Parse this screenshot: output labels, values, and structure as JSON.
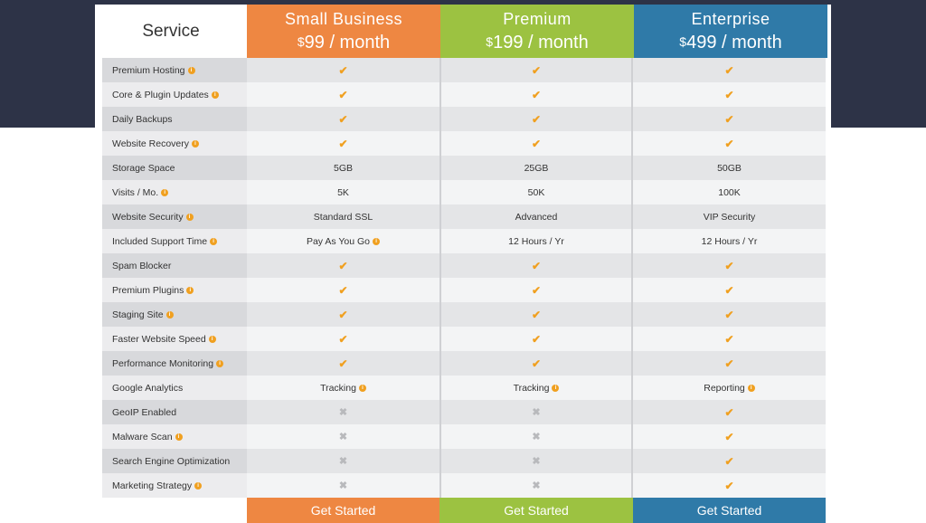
{
  "header": {
    "service_label": "Service",
    "plans": [
      {
        "name": "Small Business",
        "currency": "$",
        "price": "99 / month",
        "color": "#ee8742"
      },
      {
        "name": "Premium",
        "currency": "$",
        "price": "199 / month",
        "color": "#9cc241"
      },
      {
        "name": "Enterprise",
        "currency": "$",
        "price": "499 / month",
        "color": "#2f7aa8"
      }
    ]
  },
  "icons": {
    "check": "✔",
    "cross": "✖",
    "info": "i"
  },
  "rows": [
    {
      "label": "Premium Hosting",
      "info": true,
      "cells": [
        {
          "type": "check"
        },
        {
          "type": "check"
        },
        {
          "type": "check"
        }
      ]
    },
    {
      "label": "Core & Plugin Updates",
      "info": true,
      "cells": [
        {
          "type": "check"
        },
        {
          "type": "check"
        },
        {
          "type": "check"
        }
      ]
    },
    {
      "label": "Daily Backups",
      "info": false,
      "cells": [
        {
          "type": "check"
        },
        {
          "type": "check"
        },
        {
          "type": "check"
        }
      ]
    },
    {
      "label": "Website Recovery",
      "info": true,
      "cells": [
        {
          "type": "check"
        },
        {
          "type": "check"
        },
        {
          "type": "check"
        }
      ]
    },
    {
      "label": "Storage Space",
      "info": false,
      "cells": [
        {
          "type": "text",
          "text": "5GB"
        },
        {
          "type": "text",
          "text": "25GB"
        },
        {
          "type": "text",
          "text": "50GB"
        }
      ]
    },
    {
      "label": "Visits / Mo.",
      "info": true,
      "cells": [
        {
          "type": "text",
          "text": "5K"
        },
        {
          "type": "text",
          "text": "50K"
        },
        {
          "type": "text",
          "text": "100K"
        }
      ]
    },
    {
      "label": "Website Security",
      "info": true,
      "cells": [
        {
          "type": "text",
          "text": "Standard SSL"
        },
        {
          "type": "text",
          "text": "Advanced"
        },
        {
          "type": "text",
          "text": "VIP Security"
        }
      ]
    },
    {
      "label": "Included Support Time",
      "info": true,
      "cells": [
        {
          "type": "text",
          "text": "Pay As You Go",
          "info": true
        },
        {
          "type": "text",
          "text": "12 Hours / Yr"
        },
        {
          "type": "text",
          "text": "12 Hours / Yr"
        }
      ]
    },
    {
      "label": "Spam Blocker",
      "info": false,
      "cells": [
        {
          "type": "check"
        },
        {
          "type": "check"
        },
        {
          "type": "check"
        }
      ]
    },
    {
      "label": "Premium Plugins",
      "info": true,
      "cells": [
        {
          "type": "check"
        },
        {
          "type": "check"
        },
        {
          "type": "check"
        }
      ]
    },
    {
      "label": "Staging Site",
      "info": true,
      "cells": [
        {
          "type": "check"
        },
        {
          "type": "check"
        },
        {
          "type": "check"
        }
      ]
    },
    {
      "label": "Faster Website Speed",
      "info": true,
      "cells": [
        {
          "type": "check"
        },
        {
          "type": "check"
        },
        {
          "type": "check"
        }
      ]
    },
    {
      "label": "Performance Monitoring",
      "info": true,
      "cells": [
        {
          "type": "check"
        },
        {
          "type": "check"
        },
        {
          "type": "check"
        }
      ]
    },
    {
      "label": "Google Analytics",
      "info": false,
      "cells": [
        {
          "type": "text",
          "text": "Tracking",
          "info": true
        },
        {
          "type": "text",
          "text": "Tracking",
          "info": true
        },
        {
          "type": "text",
          "text": "Reporting",
          "info": true
        }
      ]
    },
    {
      "label": "GeoIP Enabled",
      "info": false,
      "cells": [
        {
          "type": "cross"
        },
        {
          "type": "cross"
        },
        {
          "type": "check"
        }
      ]
    },
    {
      "label": "Malware Scan",
      "info": true,
      "cells": [
        {
          "type": "cross"
        },
        {
          "type": "cross"
        },
        {
          "type": "check"
        }
      ]
    },
    {
      "label": "Search Engine Optimization",
      "info": false,
      "cells": [
        {
          "type": "cross"
        },
        {
          "type": "cross"
        },
        {
          "type": "check"
        }
      ]
    },
    {
      "label": "Marketing Strategy",
      "info": true,
      "cells": [
        {
          "type": "cross"
        },
        {
          "type": "cross"
        },
        {
          "type": "check"
        }
      ]
    }
  ],
  "footer": {
    "button_label": "Get Started"
  }
}
